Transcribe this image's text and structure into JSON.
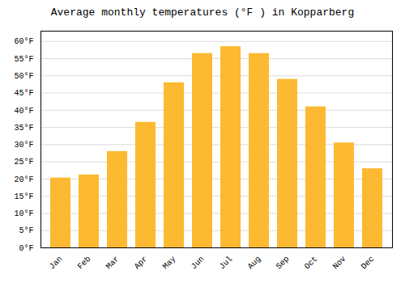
{
  "chart_data": {
    "type": "bar",
    "title": "Average monthly temperatures (°F ) in Kopparberg",
    "categories": [
      "Jan",
      "Feb",
      "Mar",
      "Apr",
      "May",
      "Jun",
      "Jul",
      "Aug",
      "Sep",
      "Oct",
      "Nov",
      "Dec"
    ],
    "values": [
      20.3,
      21.2,
      28.0,
      36.5,
      48.0,
      56.5,
      58.5,
      56.5,
      49.0,
      41.0,
      30.5,
      23.0
    ],
    "color": "#FDB931",
    "ylim": [
      0,
      63
    ],
    "yticks": [
      {
        "value": 0,
        "label": "0°F"
      },
      {
        "value": 5,
        "label": "5°F"
      },
      {
        "value": 10,
        "label": "10°F"
      },
      {
        "value": 15,
        "label": "15°F"
      },
      {
        "value": 20,
        "label": "20°F"
      },
      {
        "value": 25,
        "label": "25°F"
      },
      {
        "value": 30,
        "label": "30°F"
      },
      {
        "value": 35,
        "label": "35°F"
      },
      {
        "value": 40,
        "label": "40°F"
      },
      {
        "value": 45,
        "label": "45°F"
      },
      {
        "value": 50,
        "label": "50°F"
      },
      {
        "value": 55,
        "label": "55°F"
      },
      {
        "value": 60,
        "label": "60°F"
      }
    ],
    "grid": true
  }
}
